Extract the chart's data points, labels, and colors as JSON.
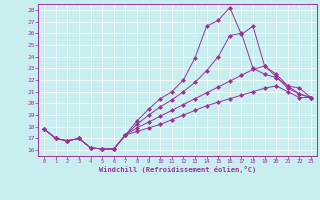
{
  "xlabel": "Windchill (Refroidissement éolien,°C)",
  "background_color": "#c8eef0",
  "line_color": "#993399",
  "x_ticks": [
    0,
    1,
    2,
    3,
    4,
    5,
    6,
    7,
    8,
    9,
    10,
    11,
    12,
    13,
    14,
    15,
    16,
    17,
    18,
    19,
    20,
    21,
    22,
    23
  ],
  "y_ticks": [
    16,
    17,
    18,
    19,
    20,
    21,
    22,
    23,
    24,
    25,
    26,
    27,
    28
  ],
  "xlim": [
    -0.5,
    23.5
  ],
  "ylim": [
    15.5,
    28.5
  ],
  "lines": [
    [
      17.8,
      17.0,
      16.8,
      17.0,
      16.2,
      16.1,
      16.1,
      17.3,
      18.5,
      19.5,
      20.4,
      21.0,
      22.0,
      23.9,
      26.6,
      27.1,
      28.2,
      25.9,
      26.6,
      23.2,
      22.5,
      21.5,
      21.3,
      20.5
    ],
    [
      17.8,
      17.0,
      16.8,
      17.0,
      16.2,
      16.1,
      16.1,
      17.3,
      18.2,
      19.0,
      19.7,
      20.3,
      21.0,
      21.8,
      22.8,
      24.0,
      25.8,
      26.0,
      23.0,
      22.5,
      22.2,
      21.5,
      20.8,
      20.5
    ],
    [
      17.8,
      17.0,
      16.8,
      17.0,
      16.2,
      16.1,
      16.1,
      17.3,
      17.9,
      18.4,
      18.9,
      19.4,
      19.9,
      20.4,
      20.9,
      21.4,
      21.9,
      22.4,
      22.9,
      23.2,
      22.3,
      21.3,
      20.8,
      20.5
    ],
    [
      17.8,
      17.0,
      16.8,
      17.0,
      16.2,
      16.1,
      16.1,
      17.3,
      17.6,
      17.9,
      18.2,
      18.6,
      19.0,
      19.4,
      19.8,
      20.1,
      20.4,
      20.7,
      21.0,
      21.3,
      21.5,
      21.0,
      20.5,
      20.5
    ]
  ]
}
